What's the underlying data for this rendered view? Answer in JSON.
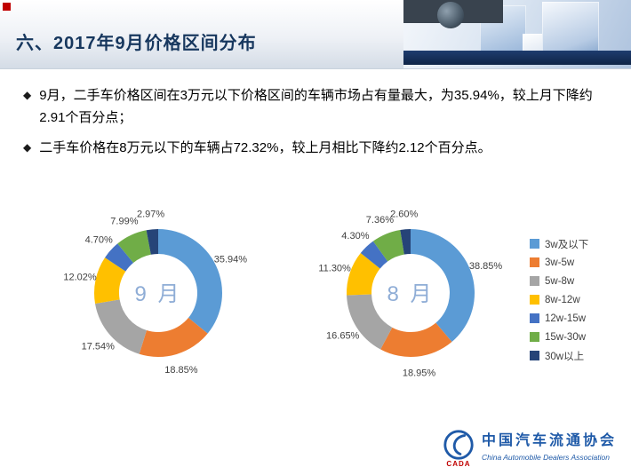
{
  "header": {
    "title": "六、2017年9月价格区间分布"
  },
  "bullets": [
    {
      "marker": "◆",
      "text": "9月，二手车价格区间在3万元以下价格区间的车辆市场占有量最大，为35.94%，较上月下降约2.91个百分点；"
    },
    {
      "marker": "◆",
      "text": "二手车价格在8万元以下的车辆占72.32%，较上月相比下降约2.12个百分点。"
    }
  ],
  "chart_data": [
    {
      "type": "pie",
      "style": "donut",
      "center_label": "9 月",
      "categories": [
        "3w及以下",
        "3w-5w",
        "5w-8w",
        "8w-12w",
        "12w-15w",
        "15w-30w",
        "30w以上"
      ],
      "values": [
        35.94,
        18.85,
        17.54,
        12.02,
        4.7,
        7.99,
        2.97
      ],
      "value_labels": [
        "35.94%",
        "18.85%",
        "17.54%",
        "12.02%",
        "4.70%",
        "7.99%",
        "2.97%"
      ],
      "colors": [
        "#5B9BD5",
        "#ED7D31",
        "#A5A5A5",
        "#FFC000",
        "#4472C4",
        "#70AD47",
        "#264478"
      ],
      "legend_position": "right"
    },
    {
      "type": "pie",
      "style": "donut",
      "center_label": "8 月",
      "categories": [
        "3w及以下",
        "3w-5w",
        "5w-8w",
        "8w-12w",
        "12w-15w",
        "15w-30w",
        "30w以上"
      ],
      "values": [
        38.85,
        18.95,
        16.65,
        11.3,
        4.3,
        7.36,
        2.6
      ],
      "value_labels": [
        "38.85%",
        "18.95%",
        "16.65%",
        "11.30%",
        "4.30%",
        "7.36%",
        "2.60%"
      ],
      "colors": [
        "#5B9BD5",
        "#ED7D31",
        "#A5A5A5",
        "#FFC000",
        "#4472C4",
        "#70AD47",
        "#264478"
      ],
      "legend_position": "right"
    }
  ],
  "legend": {
    "items": [
      {
        "label": "3w及以下",
        "color": "#5B9BD5"
      },
      {
        "label": "3w-5w",
        "color": "#ED7D31"
      },
      {
        "label": "5w-8w",
        "color": "#A5A5A5"
      },
      {
        "label": "8w-12w",
        "color": "#FFC000"
      },
      {
        "label": "12w-15w",
        "color": "#4472C4"
      },
      {
        "label": "15w-30w",
        "color": "#70AD47"
      },
      {
        "label": "30w以上",
        "color": "#264478"
      }
    ]
  },
  "footer": {
    "org_cn": "中国汽车流通协会",
    "org_en": "China Automobile Dealers Association",
    "org_abbr": "CADA"
  }
}
